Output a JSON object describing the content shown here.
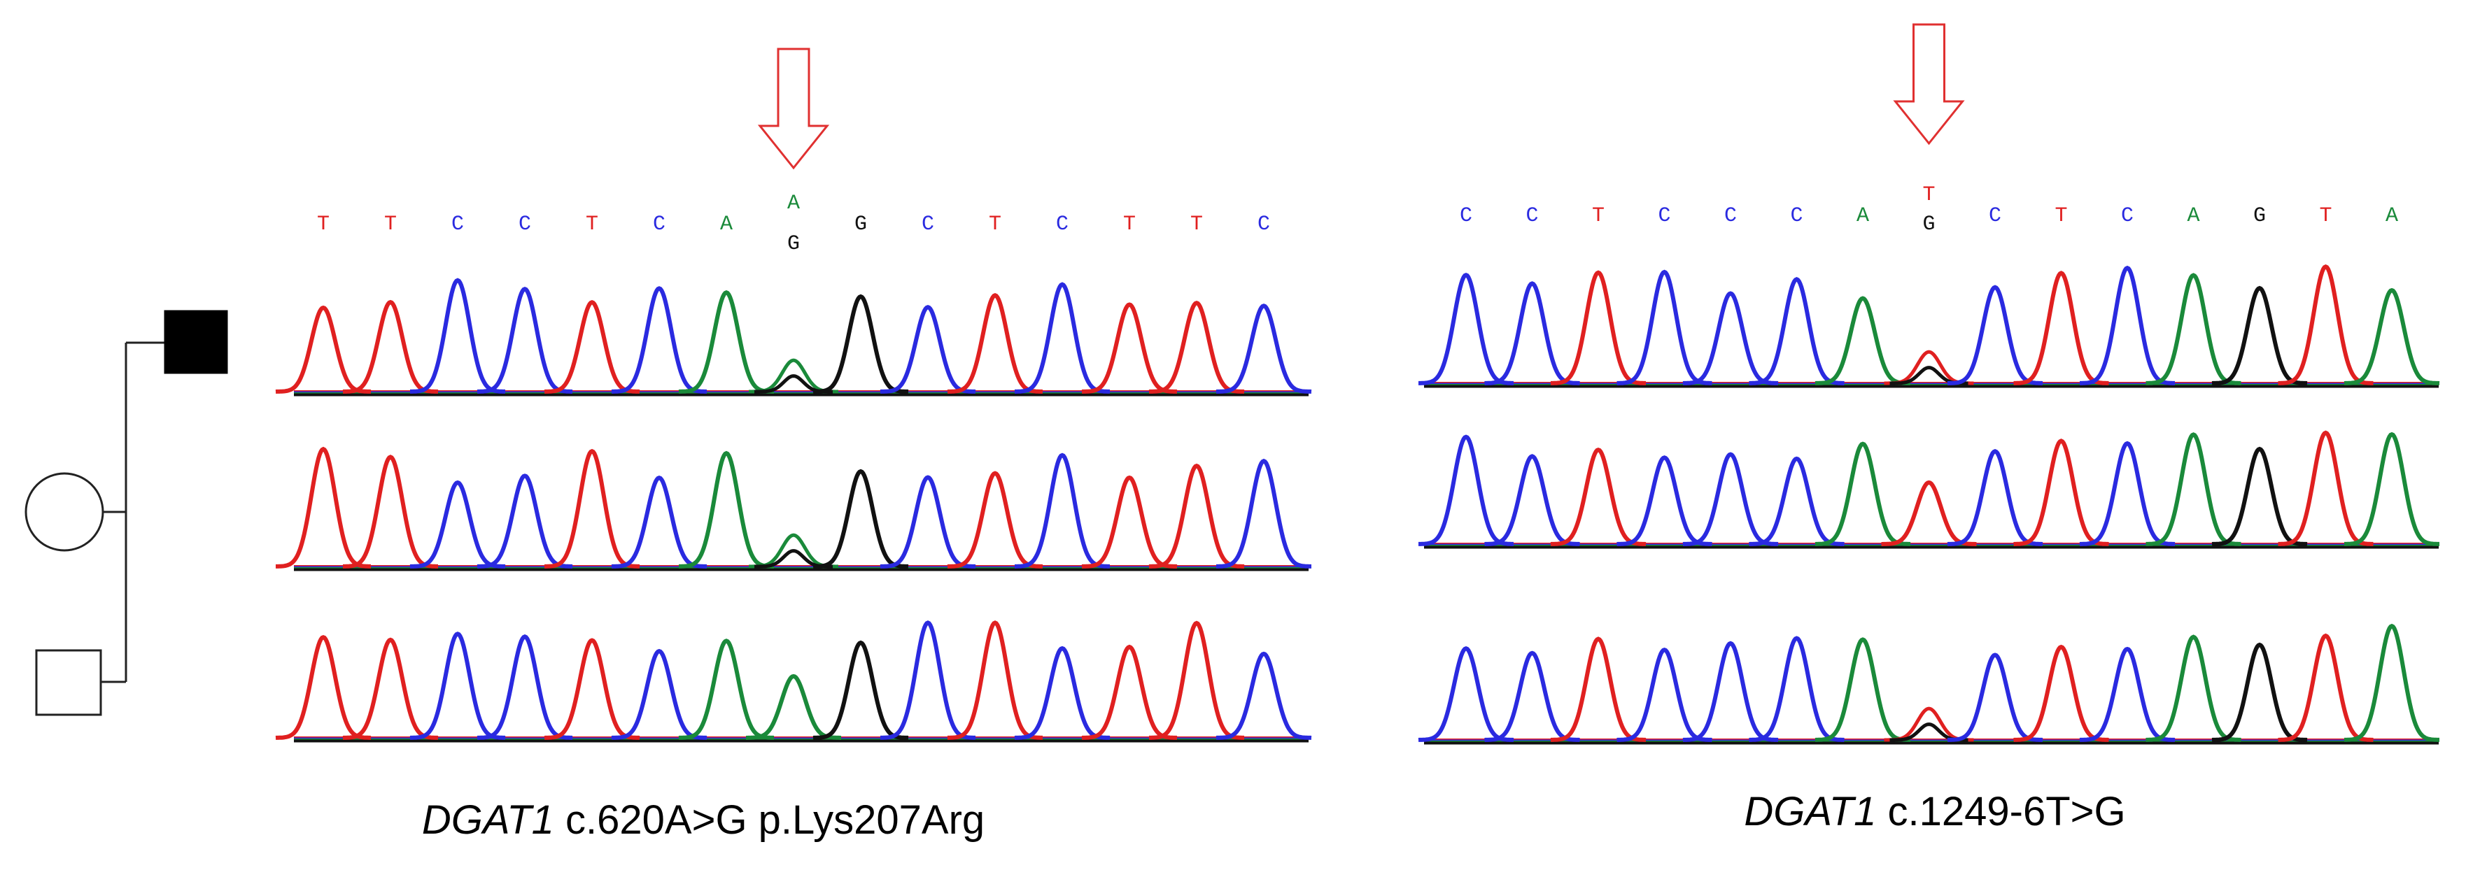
{
  "figure": {
    "pedigree": {
      "members": [
        {
          "role": "proband",
          "symbol": "square",
          "affected": true
        },
        {
          "role": "mother",
          "symbol": "circle",
          "affected": false
        },
        {
          "role": "father",
          "symbol": "square",
          "affected": false
        }
      ]
    },
    "panels": [
      {
        "sequence": [
          "T",
          "T",
          "C",
          "C",
          "T",
          "C",
          "A",
          "A",
          "G",
          "C",
          "T",
          "C",
          "T",
          "T",
          "C"
        ],
        "variant_index": 7,
        "variant_alt": "G",
        "caption_gene": "DGAT1",
        "caption_rest": " c.620A>G p.Lys207Arg",
        "traces": 3,
        "heterozygous_traces": [
          true,
          true,
          false
        ]
      },
      {
        "sequence": [
          "C",
          "C",
          "T",
          "C",
          "C",
          "C",
          "A",
          "T",
          "C",
          "T",
          "C",
          "A",
          "G",
          "T",
          "A"
        ],
        "variant_index": 7,
        "variant_alt": "G",
        "caption_gene": "DGAT1",
        "caption_rest": " c.1249-6T>G",
        "traces": 3,
        "heterozygous_traces": [
          true,
          false,
          true
        ]
      }
    ],
    "colors": {
      "A": "#1a8a3a",
      "C": "#2a2ae0",
      "G": "#111111",
      "T": "#e02020",
      "arrow": "#e03030",
      "pedigree": "#222222"
    }
  }
}
